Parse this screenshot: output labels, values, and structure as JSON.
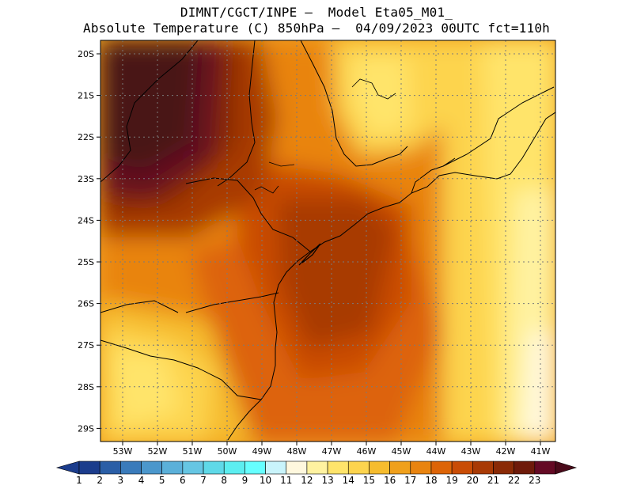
{
  "title": {
    "line1": "DIMNT/CGCT/INPE —  Model Eta05_M01_",
    "line2": "Absolute Temperature (C) 850hPa —  04/09/2023 00UTC fct=110h"
  },
  "map": {
    "lat_labels": [
      "20S",
      "21S",
      "22S",
      "23S",
      "24S",
      "25S",
      "26S",
      "27S",
      "28S",
      "29S"
    ],
    "lon_labels": [
      "53W",
      "52W",
      "51W",
      "50W",
      "49W",
      "48W",
      "47W",
      "46W",
      "45W",
      "44W",
      "43W",
      "42W",
      "41W"
    ],
    "gridlines": "dotted"
  },
  "colorbar": {
    "labels": [
      "1",
      "2",
      "3",
      "4",
      "5",
      "6",
      "7",
      "8",
      "9",
      "10",
      "11",
      "12",
      "13",
      "14",
      "15",
      "16",
      "17",
      "18",
      "19",
      "20",
      "21",
      "22",
      "23"
    ],
    "colors": [
      "#1b3c8c",
      "#2a5ea6",
      "#3a7bbb",
      "#4b97cc",
      "#5bb0d9",
      "#66c6e3",
      "#5fd9e8",
      "#5ceef0",
      "#66ffff",
      "#c9f4fb",
      "#fff8de",
      "#fff2a0",
      "#ffe46b",
      "#fdd44e",
      "#f6bc2e",
      "#f0a01c",
      "#e98410",
      "#dd6407",
      "#c94c05",
      "#a83a05",
      "#8a2a06",
      "#6e1a0a",
      "#640a24"
    ]
  }
}
